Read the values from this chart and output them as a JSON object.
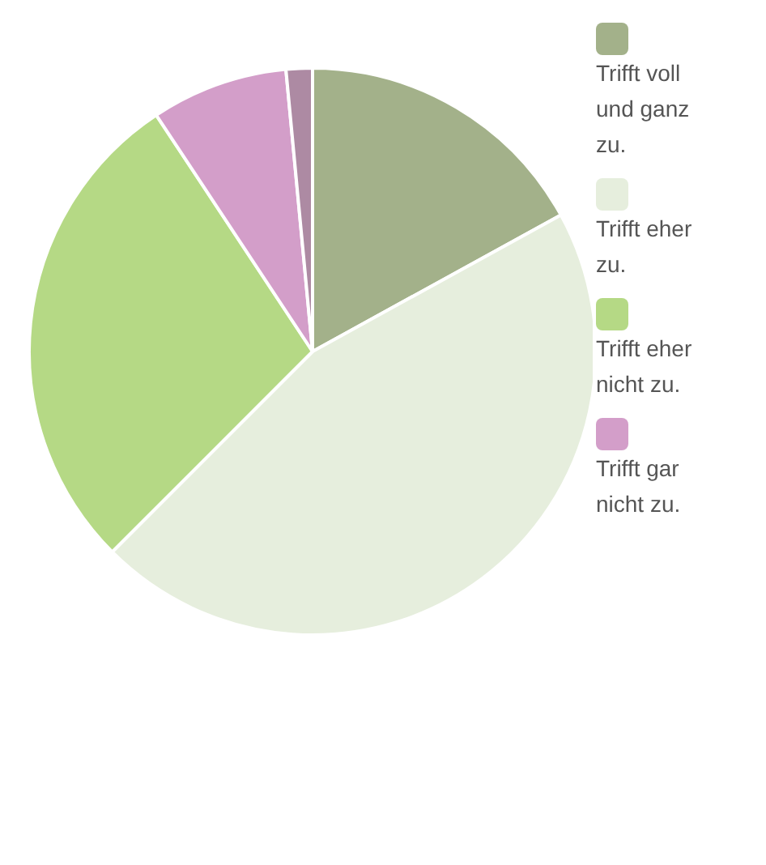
{
  "chart_data": {
    "type": "pie",
    "categories": [
      "Trifft voll und ganz zu.",
      "Trifft eher zu.",
      "Trifft eher nicht zu.",
      "Trifft gar nicht zu.",
      null
    ],
    "values": [
      17,
      45.5,
      28.2,
      7.8,
      1.5
    ],
    "colors": [
      "#a3b18a",
      "#e6eedd",
      "#b5d985",
      "#d39ec9",
      "#ad8aa3"
    ],
    "legend": "right"
  }
}
